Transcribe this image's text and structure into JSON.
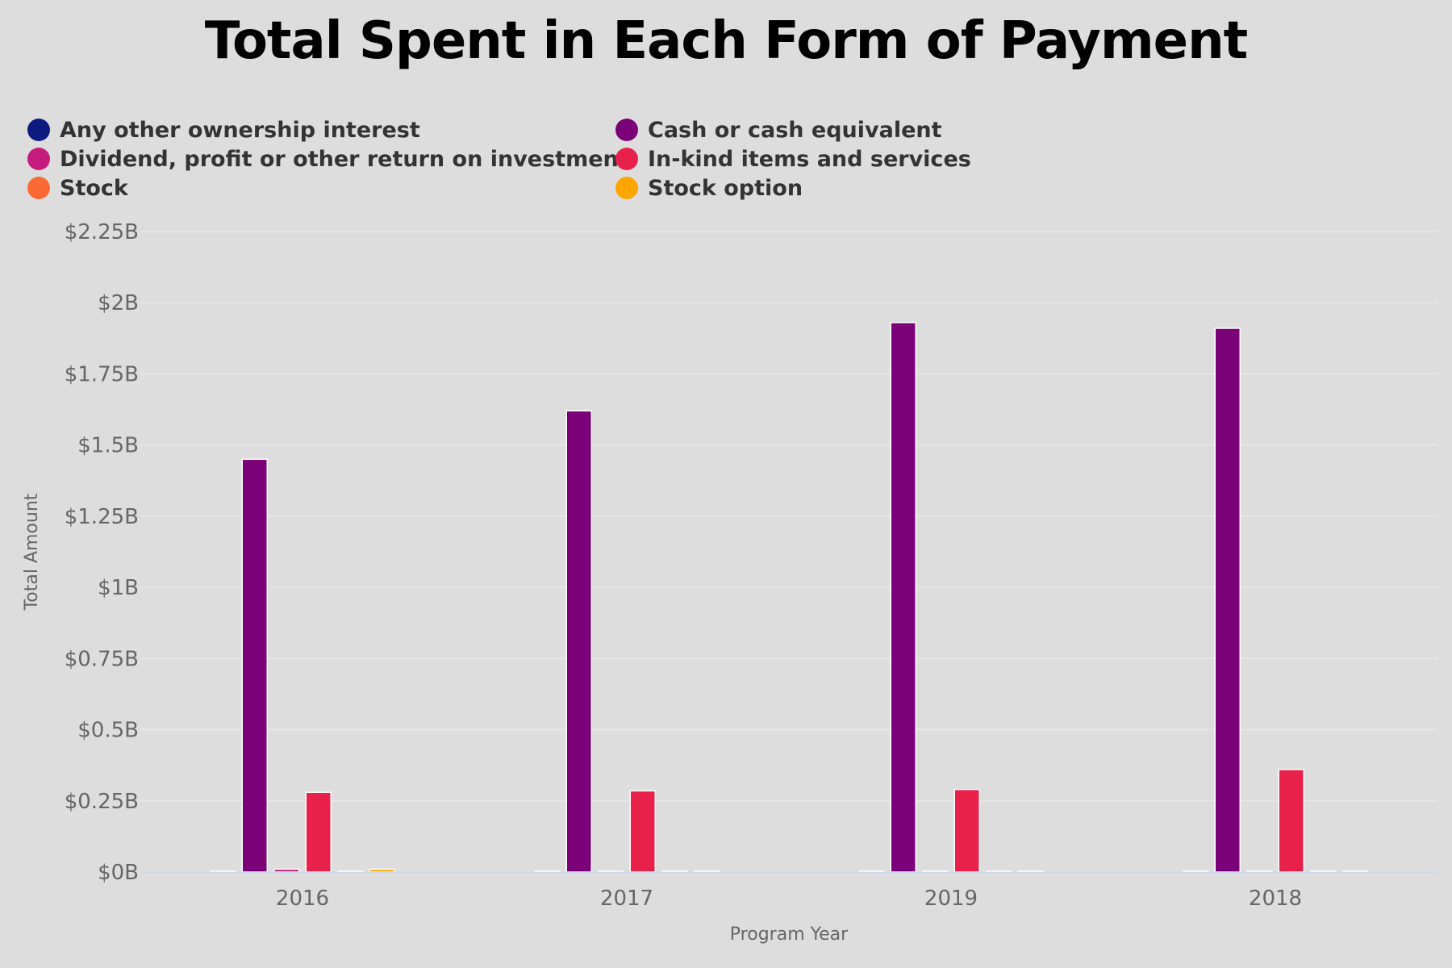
{
  "colors": {
    "background": "#dddddd",
    "grid": "#e8e8e8",
    "axis": "#ccd6eb"
  },
  "legend": [
    {
      "label": "Any other ownership interest",
      "color": "#0d1a80"
    },
    {
      "label": "Cash or cash equivalent",
      "color": "#7a0177"
    },
    {
      "label": "Dividend, profit or other return on investment",
      "color": "#c51b7d"
    },
    {
      "label": "In-kind items and services",
      "color": "#e8214b"
    },
    {
      "label": "Stock",
      "color": "#fb6a32"
    },
    {
      "label": "Stock option",
      "color": "#ffa500"
    }
  ],
  "chart_data": {
    "type": "bar",
    "title": "Total Spent in Each Form of Payment",
    "xlabel": "Program Year",
    "ylabel": "Total Amount",
    "categories": [
      "2016",
      "2017",
      "2019",
      "2018"
    ],
    "ylim": [
      0,
      2.25
    ],
    "yticks": [
      {
        "value": 0,
        "label": "$0B"
      },
      {
        "value": 0.25,
        "label": "$0.25B"
      },
      {
        "value": 0.5,
        "label": "$0.5B"
      },
      {
        "value": 0.75,
        "label": "$0.75B"
      },
      {
        "value": 1,
        "label": "$1B"
      },
      {
        "value": 1.25,
        "label": "$1.25B"
      },
      {
        "value": 1.5,
        "label": "$1.5B"
      },
      {
        "value": 1.75,
        "label": "$1.75B"
      },
      {
        "value": 2,
        "label": "$2B"
      },
      {
        "value": 2.25,
        "label": "$2.25B"
      }
    ],
    "grid": true,
    "legend_position": "top",
    "series": [
      {
        "name": "Any other ownership interest",
        "color": "#0d1a80",
        "values": [
          0,
          0,
          0.003,
          0
        ]
      },
      {
        "name": "Cash or cash equivalent",
        "color": "#7a0177",
        "values": [
          1.45,
          1.62,
          1.93,
          1.91
        ]
      },
      {
        "name": "Dividend, profit or other return on investment",
        "color": "#c51b7d",
        "values": [
          0.01,
          0.002,
          0.003,
          0.003
        ]
      },
      {
        "name": "In-kind items and services",
        "color": "#e8214b",
        "values": [
          0.28,
          0.285,
          0.29,
          0.36
        ]
      },
      {
        "name": "Stock",
        "color": "#fb6a32",
        "values": [
          0.003,
          0.003,
          0.003,
          0.003
        ]
      },
      {
        "name": "Stock option",
        "color": "#ffa500",
        "values": [
          0.01,
          0.003,
          0.003,
          0.003
        ]
      }
    ]
  }
}
